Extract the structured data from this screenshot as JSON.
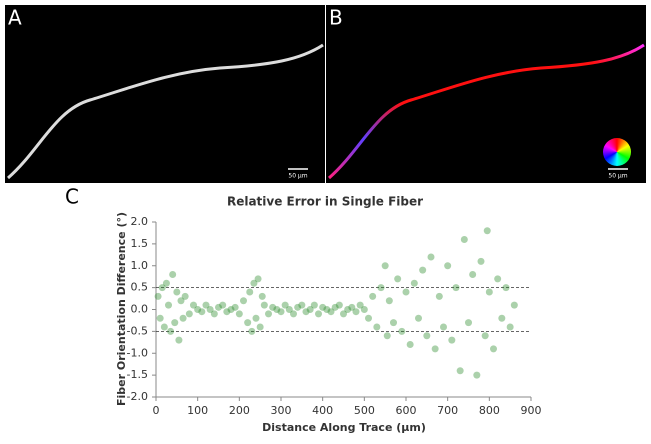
{
  "panel_labels": [
    "A",
    "B",
    "C"
  ],
  "scale_bars": [
    "50 µm",
    "50 µm"
  ],
  "chart_data": {
    "type": "scatter",
    "title": "Relative Error in Single Fiber",
    "x_label": "Distance Along Trace (µm)",
    "y_label": "Fiber Orientation Difference (°)",
    "color": "#2e8b2e",
    "xlim": [
      0,
      900
    ],
    "ylim": [
      -2,
      2
    ],
    "xticks": [
      0,
      100,
      200,
      300,
      400,
      500,
      600,
      700,
      800,
      900
    ],
    "yticks": [
      {
        "value": -2,
        "label": "-2.0"
      },
      {
        "value": -1.5,
        "label": "-1.5"
      },
      {
        "value": -1,
        "label": "-1.0"
      },
      {
        "value": -0.5,
        "label": "-0.5"
      },
      {
        "value": 0,
        "label": "0.0"
      },
      {
        "value": 0.5,
        "label": "0.5"
      },
      {
        "value": 1,
        "label": "1.0"
      },
      {
        "value": 1.5,
        "label": "1.5"
      },
      {
        "value": 2,
        "label": "2.0"
      }
    ],
    "reference_lines": [
      0.5,
      -0.5
    ],
    "x": [
      5,
      10,
      15,
      20,
      25,
      30,
      35,
      40,
      45,
      50,
      55,
      60,
      65,
      70,
      80,
      90,
      100,
      110,
      120,
      130,
      140,
      150,
      160,
      170,
      180,
      190,
      200,
      210,
      220,
      225,
      230,
      235,
      240,
      245,
      250,
      255,
      260,
      270,
      280,
      290,
      300,
      310,
      320,
      330,
      340,
      350,
      360,
      370,
      380,
      390,
      400,
      410,
      420,
      430,
      440,
      450,
      460,
      470,
      480,
      490,
      500,
      510,
      520,
      530,
      540,
      550,
      555,
      560,
      570,
      580,
      590,
      600,
      610,
      620,
      630,
      640,
      650,
      660,
      670,
      680,
      690,
      700,
      710,
      720,
      730,
      740,
      750,
      760,
      770,
      780,
      790,
      795,
      800,
      810,
      820,
      830,
      840,
      850,
      860
    ],
    "y": [
      0.3,
      -0.2,
      0.5,
      -0.4,
      0.6,
      0.1,
      -0.5,
      0.8,
      -0.3,
      0.4,
      -0.7,
      0.2,
      -0.2,
      0.3,
      -0.1,
      0.1,
      0,
      -0.05,
      0.1,
      0,
      -0.1,
      0.05,
      0.1,
      -0.05,
      0,
      0.05,
      -0.1,
      0.2,
      -0.3,
      0.4,
      -0.5,
      0.6,
      -0.2,
      0.7,
      -0.4,
      0.3,
      0.1,
      -0.1,
      0.05,
      0,
      -0.05,
      0.1,
      0,
      -0.1,
      0.05,
      0.1,
      -0.05,
      0,
      0.1,
      -0.1,
      0.05,
      0,
      -0.05,
      0.05,
      0.1,
      -0.1,
      0,
      0.05,
      -0.05,
      0.1,
      0,
      -0.2,
      0.3,
      -0.4,
      0.5,
      1,
      -0.6,
      0.2,
      -0.3,
      0.7,
      -0.5,
      0.4,
      -0.8,
      0.6,
      -0.2,
      0.9,
      -0.6,
      1.2,
      -0.9,
      0.3,
      -0.4,
      1,
      -0.7,
      0.5,
      -1.4,
      1.6,
      -0.3,
      0.8,
      -1.5,
      1.1,
      -0.6,
      1.8,
      0.4,
      -0.9,
      0.7,
      -0.2,
      0.5,
      -0.4,
      0.1
    ]
  }
}
